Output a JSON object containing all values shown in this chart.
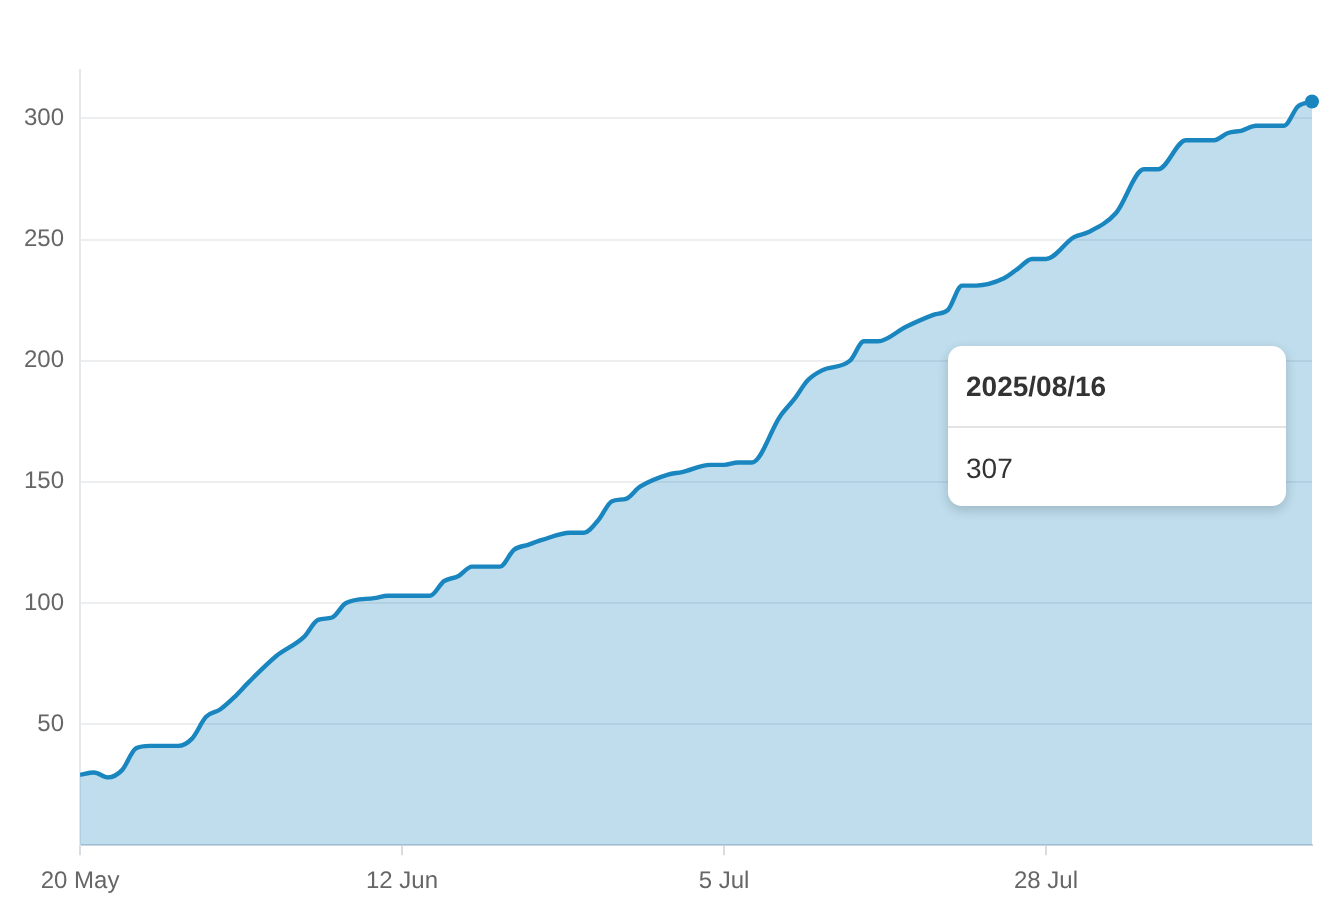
{
  "chart_data": {
    "type": "area",
    "x": [
      "2025-05-20",
      "2025-05-21",
      "2025-05-22",
      "2025-05-23",
      "2025-05-24",
      "2025-05-25",
      "2025-05-27",
      "2025-05-28",
      "2025-05-29",
      "2025-05-30",
      "2025-05-31",
      "2025-06-01",
      "2025-06-03",
      "2025-06-05",
      "2025-06-06",
      "2025-06-07",
      "2025-06-08",
      "2025-06-10",
      "2025-06-11",
      "2025-06-14",
      "2025-06-15",
      "2025-06-16",
      "2025-06-17",
      "2025-06-19",
      "2025-06-20",
      "2025-06-21",
      "2025-06-22",
      "2025-06-24",
      "2025-06-25",
      "2025-06-26",
      "2025-06-27",
      "2025-06-28",
      "2025-06-29",
      "2025-07-01",
      "2025-07-02",
      "2025-07-04",
      "2025-07-05",
      "2025-07-06",
      "2025-07-07",
      "2025-07-09",
      "2025-07-10",
      "2025-07-11",
      "2025-07-12",
      "2025-07-14",
      "2025-07-15",
      "2025-07-16",
      "2025-07-18",
      "2025-07-20",
      "2025-07-21",
      "2025-07-22",
      "2025-07-23",
      "2025-07-25",
      "2025-07-26",
      "2025-07-27",
      "2025-07-28",
      "2025-07-30",
      "2025-07-31",
      "2025-08-02",
      "2025-08-04",
      "2025-08-05",
      "2025-08-07",
      "2025-08-09",
      "2025-08-10",
      "2025-08-11",
      "2025-08-12",
      "2025-08-14",
      "2025-08-15",
      "2025-08-16"
    ],
    "series": [
      {
        "color": "#1a86bf",
        "values": [
          29,
          30,
          28,
          31,
          40,
          41,
          41,
          44,
          53,
          56,
          61,
          67,
          78,
          86,
          93,
          94,
          100,
          102,
          103,
          103,
          109,
          111,
          115,
          115,
          122,
          124,
          126,
          129,
          129,
          134,
          142,
          143,
          148,
          153,
          154,
          157,
          157,
          158,
          158,
          177,
          184,
          192,
          196,
          200,
          208,
          208,
          214,
          219,
          221,
          231,
          231,
          234,
          238,
          242,
          242,
          251,
          253,
          261,
          279,
          279,
          291,
          291,
          294,
          295,
          297,
          297,
          305,
          307
        ]
      }
    ],
    "xlim": [
      "2025-05-20",
      "2025-08-16"
    ],
    "xticks": [
      {
        "value": "2025-05-20",
        "label": "20 May"
      },
      {
        "value": "2025-06-12",
        "label": "12 Jun"
      },
      {
        "value": "2025-07-05",
        "label": "5 Jul"
      },
      {
        "value": "2025-07-28",
        "label": "28 Jul"
      }
    ],
    "ylim": [
      0,
      320
    ],
    "yticks": [
      50,
      100,
      150,
      200,
      250,
      300
    ],
    "grid": "y",
    "legend": false,
    "marker": "none",
    "line_style": "solid",
    "annotations": [
      "2025/08/16",
      "307"
    ]
  }
}
